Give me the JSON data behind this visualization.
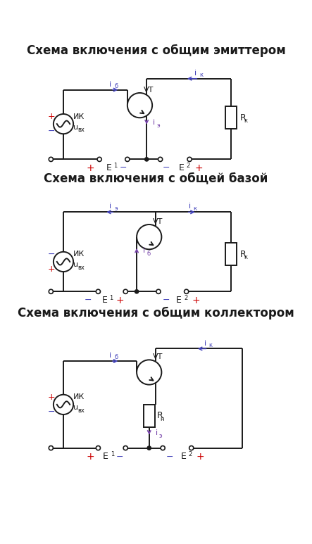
{
  "title1": "Схема включения с общим эмиттером",
  "title2": "Схема включения с общей базой",
  "title3": "Схема включения с общим коллектором",
  "title_fontsize": 12,
  "bg_color": "#ffffff",
  "black": "#1a1a1a",
  "red": "#cc0000",
  "blue_dark": "#4444bb",
  "purple": "#7744aa",
  "lw": 1.4
}
